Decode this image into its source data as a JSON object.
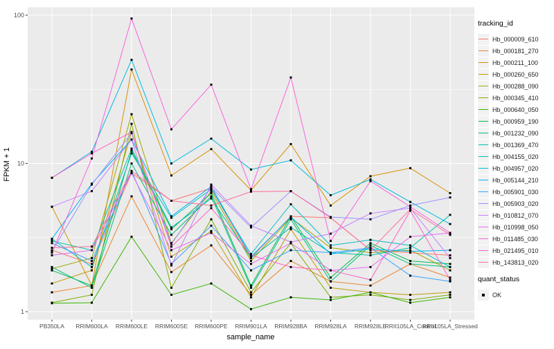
{
  "chart_data": {
    "type": "line",
    "title": "",
    "xlabel": "sample_name",
    "ylabel": "FPKM + 1",
    "y_scale": "log10",
    "ylim": [
      1,
      100
    ],
    "y_ticks": [
      1,
      10,
      100
    ],
    "y_minor_ticks": [
      3.1623,
      31.623
    ],
    "grid": "on",
    "categories": [
      "PB350LA",
      "RRIM600LA",
      "RRIM600LE",
      "RRIM600SE",
      "RRIM600PE",
      "RRIM901LA",
      "RRIM928BA",
      "RRIM928LA",
      "RRIM928LE",
      "RRII105LA_Control",
      "RRII105LA_Stressed"
    ],
    "series": [
      {
        "name": "Hb_000009_610",
        "color": "#F8766D",
        "values": [
          2.6,
          2.1,
          8.6,
          5.6,
          6.8,
          2.3,
          4.4,
          4.3,
          2.6,
          2.5,
          2.4
        ]
      },
      {
        "name": "Hb_000181_270",
        "color": "#EA8331",
        "values": [
          1.35,
          1.5,
          6.0,
          1.85,
          2.8,
          1.3,
          2.2,
          1.6,
          1.5,
          2.1,
          1.7
        ]
      },
      {
        "name": "Hb_000211_100",
        "color": "#D89000",
        "values": [
          5.1,
          1.5,
          43,
          8.3,
          12.5,
          6.6,
          13.5,
          5.2,
          8.2,
          9.3,
          6.3
        ]
      },
      {
        "name": "Hb_000260_650",
        "color": "#C09B00",
        "values": [
          1.55,
          1.9,
          16.3,
          2.35,
          3.5,
          1.25,
          3.6,
          1.45,
          1.35,
          1.3,
          1.35
        ]
      },
      {
        "name": "Hb_000288_090",
        "color": "#A3A500",
        "values": [
          1.95,
          2.3,
          21.5,
          2.9,
          6.5,
          2.2,
          4.3,
          2.7,
          2.5,
          2.6,
          1.9
        ]
      },
      {
        "name": "Hb_000345_410",
        "color": "#7CAE00",
        "values": [
          1.15,
          1.3,
          18.5,
          1.45,
          4.2,
          1.35,
          2.9,
          1.25,
          1.3,
          1.2,
          1.3
        ]
      },
      {
        "name": "Hb_000640_050",
        "color": "#39B600",
        "values": [
          1.14,
          1.15,
          3.2,
          1.3,
          1.55,
          1.04,
          1.25,
          1.2,
          1.35,
          1.15,
          1.25
        ]
      },
      {
        "name": "Hb_000959_190",
        "color": "#00BB4E",
        "values": [
          1.9,
          1.5,
          12.2,
          3.6,
          6.3,
          1.5,
          4.4,
          1.7,
          2.9,
          2.2,
          2.1
        ]
      },
      {
        "name": "Hb_001232_090",
        "color": "#00BF7D",
        "values": [
          2.0,
          1.45,
          10.0,
          3.3,
          6.0,
          1.45,
          4.2,
          1.6,
          2.8,
          2.1,
          2.0
        ]
      },
      {
        "name": "Hb_001369_470",
        "color": "#00C1A3",
        "values": [
          3.0,
          2.6,
          12.6,
          3.7,
          5.8,
          2.3,
          3.7,
          2.5,
          2.4,
          2.7,
          4.5
        ]
      },
      {
        "name": "Hb_004155_020",
        "color": "#00BFC4",
        "values": [
          3.1,
          2.0,
          11.7,
          4.3,
          6.7,
          2.45,
          5.3,
          2.8,
          3.05,
          2.8,
          2.0
        ]
      },
      {
        "name": "Hb_004957_020",
        "color": "#00BAE0",
        "values": [
          8.0,
          12.0,
          50,
          10.0,
          14.7,
          9.1,
          10.5,
          6.1,
          7.8,
          5.5,
          3.9
        ]
      },
      {
        "name": "Hb_005144_210",
        "color": "#00B0F6",
        "values": [
          3.1,
          7.3,
          14.5,
          4.4,
          7.0,
          2.35,
          4.35,
          2.45,
          2.65,
          2.55,
          2.6
        ]
      },
      {
        "name": "Hb_005901_030",
        "color": "#35A2FF",
        "values": [
          2.9,
          2.2,
          8.9,
          2.1,
          3.8,
          1.9,
          2.6,
          2.5,
          2.7,
          1.75,
          1.6
        ]
      },
      {
        "name": "Hb_005903_020",
        "color": "#9590FF",
        "values": [
          2.55,
          7.2,
          16.0,
          2.86,
          6.9,
          3.7,
          6.5,
          4.35,
          4.2,
          5.2,
          5.9
        ]
      },
      {
        "name": "Hb_010812_070",
        "color": "#C77CFF",
        "values": [
          5.1,
          6.5,
          14.5,
          2.05,
          7.2,
          3.8,
          2.95,
          3.36,
          4.6,
          5.0,
          2.3
        ]
      },
      {
        "name": "Hb_010998_050",
        "color": "#E76BF3",
        "values": [
          2.4,
          2.6,
          8.6,
          2.6,
          3.4,
          2.1,
          2.9,
          1.9,
          2.0,
          3.2,
          3.4
        ]
      },
      {
        "name": "Hb_011485_030",
        "color": "#FA62DB",
        "values": [
          2.5,
          10.8,
          95,
          17,
          34,
          6.7,
          38,
          3.0,
          7.6,
          5.1,
          3.4
        ]
      },
      {
        "name": "Hb_021495_010",
        "color": "#FF61C9",
        "values": [
          8.0,
          11.7,
          16.3,
          2.75,
          5.0,
          2.4,
          2.0,
          1.9,
          1.64,
          4.8,
          1.64
        ]
      },
      {
        "name": "Hb_143813_020",
        "color": "#FF6A98",
        "values": [
          2.7,
          2.75,
          8.9,
          5.6,
          5.2,
          6.45,
          6.5,
          4.3,
          2.6,
          4.9,
          3.3
        ]
      }
    ],
    "legend": {
      "position": "right",
      "tracking_title": "tracking_id",
      "quant_title": "quant_status",
      "quant_items": [
        {
          "label": "OK",
          "marker": "black-square"
        }
      ]
    },
    "style": {
      "panel_bg": "#EBEBEB",
      "grid_color": "#FFFFFF",
      "tick_color": "#333333",
      "tick_label_color": "#4D4D4D",
      "axis_title_color": "#000000",
      "point_color": "#000000",
      "legend_key_bg": "#F2F2F2"
    }
  }
}
